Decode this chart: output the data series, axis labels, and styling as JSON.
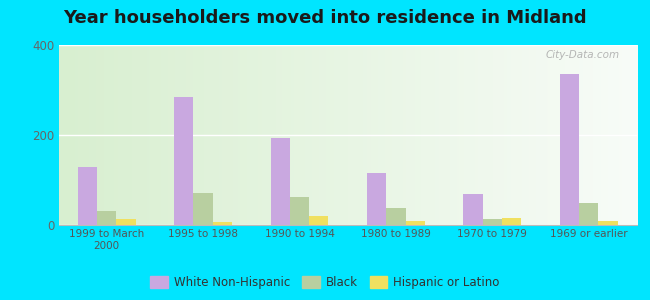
{
  "title": "Year householders moved into residence in Midland",
  "categories": [
    "1999 to March\n2000",
    "1995 to 1998",
    "1990 to 1994",
    "1980 to 1989",
    "1970 to 1979",
    "1969 or earlier"
  ],
  "white_non_hispanic": [
    130,
    285,
    193,
    115,
    70,
    335
  ],
  "black": [
    32,
    72,
    63,
    38,
    13,
    48
  ],
  "hispanic_or_latino": [
    14,
    7,
    20,
    8,
    16,
    8
  ],
  "white_color": "#c9a8e0",
  "black_color": "#b8cfa0",
  "hispanic_color": "#f0e060",
  "background_outer": "#00e5ff",
  "ylim": [
    0,
    400
  ],
  "yticks": [
    0,
    200,
    400
  ],
  "title_fontsize": 13,
  "watermark": "City-Data.com"
}
